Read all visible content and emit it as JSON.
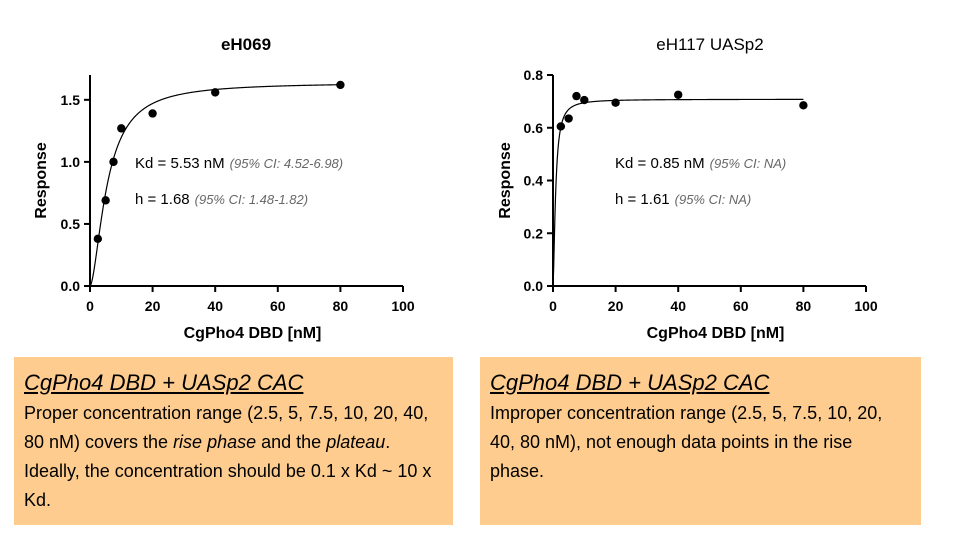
{
  "chart_data": [
    {
      "type": "scatter",
      "title": "eH069",
      "xlabel": "CgPho4 DBD [nM]",
      "ylabel": "Response",
      "xlim": [
        0,
        100
      ],
      "ylim": [
        0,
        1.7
      ],
      "xticks": [
        "0",
        "20",
        "40",
        "60",
        "80",
        "100"
      ],
      "yticks": [
        "0.0",
        "0.5",
        "1.0",
        "1.5"
      ],
      "series": [
        {
          "x": [
            2.5,
            5,
            7.5,
            10,
            20,
            40,
            80
          ],
          "y": [
            0.38,
            0.69,
            1.0,
            1.27,
            1.39,
            1.56,
            1.62
          ]
        }
      ],
      "fit": {
        "model": "hill",
        "bmax": 1.64,
        "kd": 5.53,
        "h": 1.68
      },
      "annotations": {
        "kd_label": "Kd = 5.53 nM",
        "kd_ci": "(95% CI: 4.52-6.98)",
        "h_label": "h = 1.68",
        "h_ci": "(95% CI: 1.48-1.82)"
      },
      "grid": false
    },
    {
      "type": "scatter",
      "title": "eH117 UASp2",
      "xlabel": "CgPho4 DBD [nM]",
      "ylabel": "Response",
      "xlim": [
        0,
        100
      ],
      "ylim": [
        0,
        0.8
      ],
      "xticks": [
        "0",
        "20",
        "40",
        "60",
        "80",
        "100"
      ],
      "yticks": [
        "0.0",
        "0.2",
        "0.4",
        "0.6",
        "0.8"
      ],
      "series": [
        {
          "x": [
            2.5,
            5,
            7.5,
            10,
            20,
            40,
            80
          ],
          "y": [
            0.605,
            0.635,
            0.72,
            0.705,
            0.695,
            0.725,
            0.685
          ]
        }
      ],
      "fit": {
        "model": "hill",
        "bmax": 0.708,
        "kd": 0.85,
        "h": 1.61
      },
      "annotations": {
        "kd_label": "Kd = 0.85 nM",
        "kd_ci": "(95% CI: NA)",
        "h_label": "h = 1.61",
        "h_ci": "(95% CI: NA)"
      },
      "grid": false
    }
  ],
  "notes": [
    {
      "title": "CgPho4 DBD + UASp2 CAC",
      "segments": [
        {
          "text": "Proper concentration range (2.5, 5, 7.5, 10, 20, 40, 80 nM) covers the ",
          "italic": false
        },
        {
          "text": "rise phase",
          "italic": true
        },
        {
          "text": " and the ",
          "italic": false
        },
        {
          "text": "plateau",
          "italic": true
        },
        {
          "text": ". Ideally, the concentration should be 0.1 x Kd ~ 10 x Kd.",
          "italic": false
        }
      ]
    },
    {
      "title": "CgPho4 DBD + UASp2 CAC",
      "segments": [
        {
          "text": "Improper concentration range (2.5, 5, 7.5, 10, 20, 40, 80 nM), not enough data points in the rise phase.",
          "italic": false
        }
      ]
    }
  ],
  "colors": {
    "note_background": "#fdcc8e",
    "marker": "#000000",
    "ci_text": "#666666"
  }
}
